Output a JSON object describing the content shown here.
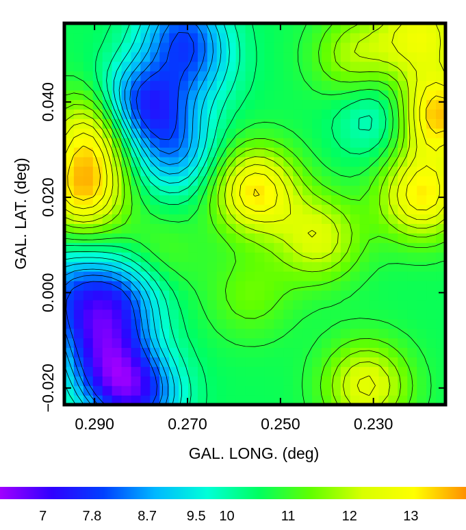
{
  "chart_data": {
    "type": "heatmap",
    "title": "",
    "xlabel": "GAL. LONG. (deg)",
    "ylabel": "GAL. LAT. (deg)",
    "xlim": [
      0.2965,
      0.2145
    ],
    "ylim": [
      -0.0235,
      0.0565
    ],
    "x_ticks": [
      0.29,
      0.27,
      0.25,
      0.23
    ],
    "x_tick_labels": [
      "0.290",
      "0.270",
      "0.250",
      "0.230"
    ],
    "y_ticks": [
      -0.02,
      0.0,
      0.02,
      0.04
    ],
    "y_tick_labels": [
      "−0.020",
      "0.000",
      "0.020",
      "0.040"
    ],
    "colorbar": {
      "min": 6.3,
      "max": 13.9,
      "tick_values": [
        7,
        7.8,
        8.7,
        9.5,
        10,
        11,
        12,
        13
      ],
      "tick_labels": [
        "7",
        "7.8",
        "8.7",
        "9.5",
        "10",
        "11",
        "12",
        "13"
      ],
      "colormap": [
        "#a000ff",
        "#3000ff",
        "#0040ff",
        "#00b8ff",
        "#00ffd8",
        "#00ff60",
        "#60ff00",
        "#d8ff00",
        "#ffff00",
        "#ff9000"
      ]
    },
    "background_level": 10.6,
    "contours": "black line contours at regular intervals",
    "features": [
      {
        "l": 0.2555,
        "b": 0.0215,
        "level": 13.2,
        "kind": "peak"
      },
      {
        "l": 0.2418,
        "b": 0.0115,
        "level": 12.3,
        "kind": "peak"
      },
      {
        "l": 0.2165,
        "b": 0.0375,
        "level": 13.6,
        "kind": "peak"
      },
      {
        "l": 0.2195,
        "b": 0.0205,
        "level": 13.1,
        "kind": "peak"
      },
      {
        "l": 0.2925,
        "b": 0.0215,
        "level": 13.2,
        "kind": "peak"
      },
      {
        "l": 0.2905,
        "b": 0.0335,
        "level": 12.7,
        "kind": "peak"
      },
      {
        "l": 0.2195,
        "b": 0.0545,
        "level": 12.6,
        "kind": "peak"
      },
      {
        "l": 0.2315,
        "b": -0.0195,
        "level": 12.5,
        "kind": "peak"
      },
      {
        "l": 0.2335,
        "b": 0.0495,
        "level": 12.0,
        "kind": "peak"
      },
      {
        "l": 0.2795,
        "b": 0.0395,
        "level": 7.8,
        "kind": "trough"
      },
      {
        "l": 0.2715,
        "b": 0.0555,
        "level": 8.7,
        "kind": "trough"
      },
      {
        "l": 0.2728,
        "b": 0.0295,
        "level": 8.8,
        "kind": "trough"
      },
      {
        "l": 0.2285,
        "b": 0.0375,
        "level": 9.4,
        "kind": "trough"
      },
      {
        "l": 0.2895,
        "b": -0.0075,
        "level": 8.7,
        "kind": "trough"
      },
      {
        "l": 0.2805,
        "b": -0.0215,
        "level": 8.2,
        "kind": "trough"
      },
      {
        "l": 0.2865,
        "b": -0.0165,
        "level": 8.3,
        "kind": "trough"
      },
      {
        "l": 0.2835,
        "b": -0.0005,
        "level": 8.8,
        "kind": "trough"
      },
      {
        "l": 0.2685,
        "b": 0.0475,
        "level": 9.3,
        "kind": "trough"
      },
      {
        "l": 0.2955,
        "b": 0.0005,
        "level": 9.0,
        "kind": "trough"
      },
      {
        "l": 0.2565,
        "b": -0.0005,
        "level": 11.4,
        "kind": "peak"
      },
      {
        "l": 0.2765,
        "b": 0.0075,
        "level": 11.3,
        "kind": "peak"
      }
    ]
  }
}
